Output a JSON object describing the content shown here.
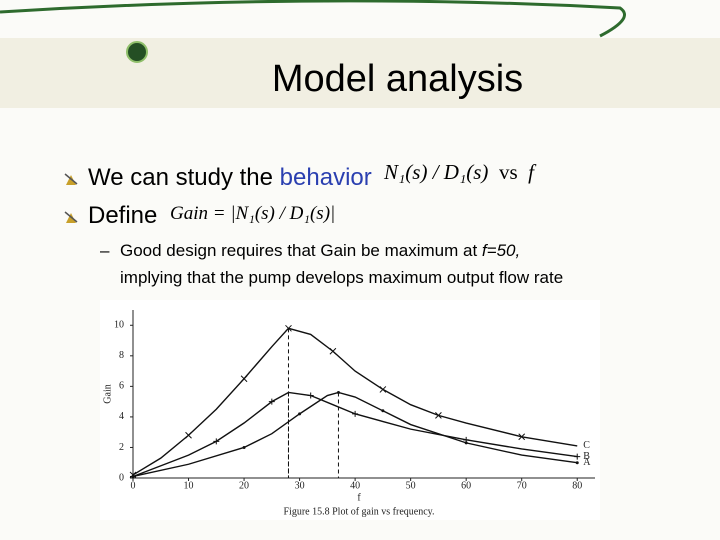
{
  "title": "Model analysis",
  "bullets": [
    {
      "text": "We can study the",
      "highlight": "behavior",
      "formula": {
        "expr": "N₁(s) / D₁(s)",
        "vs": "vs",
        "var": "f"
      }
    },
    {
      "text": "Define",
      "formula": "Gain = |N₁(s) / D₁(s)|"
    }
  ],
  "sub_bullet": {
    "before": "Good design requires that Gain be maximum at",
    "emphasis": "f=50,",
    "after": "implying that the pump develops maximum  output flow rate"
  },
  "figure": {
    "xlabel": "f",
    "ylabel": "Gain",
    "caption": "Figure 15.8   Plot of gain vs frequency.",
    "xlim": [
      0,
      85
    ],
    "ylim": [
      0,
      11
    ],
    "xticks": [
      0,
      10,
      20,
      30,
      40,
      50,
      60,
      70,
      80
    ],
    "yticks": [
      0,
      2,
      4,
      6,
      8,
      10
    ],
    "series": [
      {
        "name": "C",
        "x": [
          0,
          5,
          10,
          15,
          20,
          25,
          28,
          32,
          36,
          40,
          45,
          50,
          55,
          60,
          70,
          80
        ],
        "values": [
          0.2,
          1.3,
          2.8,
          4.5,
          6.5,
          8.6,
          9.8,
          9.4,
          8.3,
          7.0,
          5.8,
          4.8,
          4.1,
          3.6,
          2.7,
          2.1
        ]
      },
      {
        "name": "B",
        "x": [
          0,
          10,
          15,
          20,
          25,
          28,
          32,
          36,
          40,
          50,
          60,
          70,
          80
        ],
        "values": [
          0.1,
          1.5,
          2.4,
          3.6,
          5.0,
          5.6,
          5.4,
          4.8,
          4.2,
          3.2,
          2.5,
          1.9,
          1.4
        ]
      },
      {
        "name": "A",
        "x": [
          0,
          10,
          20,
          25,
          30,
          35,
          37,
          40,
          45,
          50,
          60,
          70,
          80
        ],
        "values": [
          0.1,
          0.9,
          2.0,
          2.9,
          4.2,
          5.4,
          5.6,
          5.3,
          4.4,
          3.5,
          2.3,
          1.5,
          1.0
        ]
      }
    ]
  }
}
